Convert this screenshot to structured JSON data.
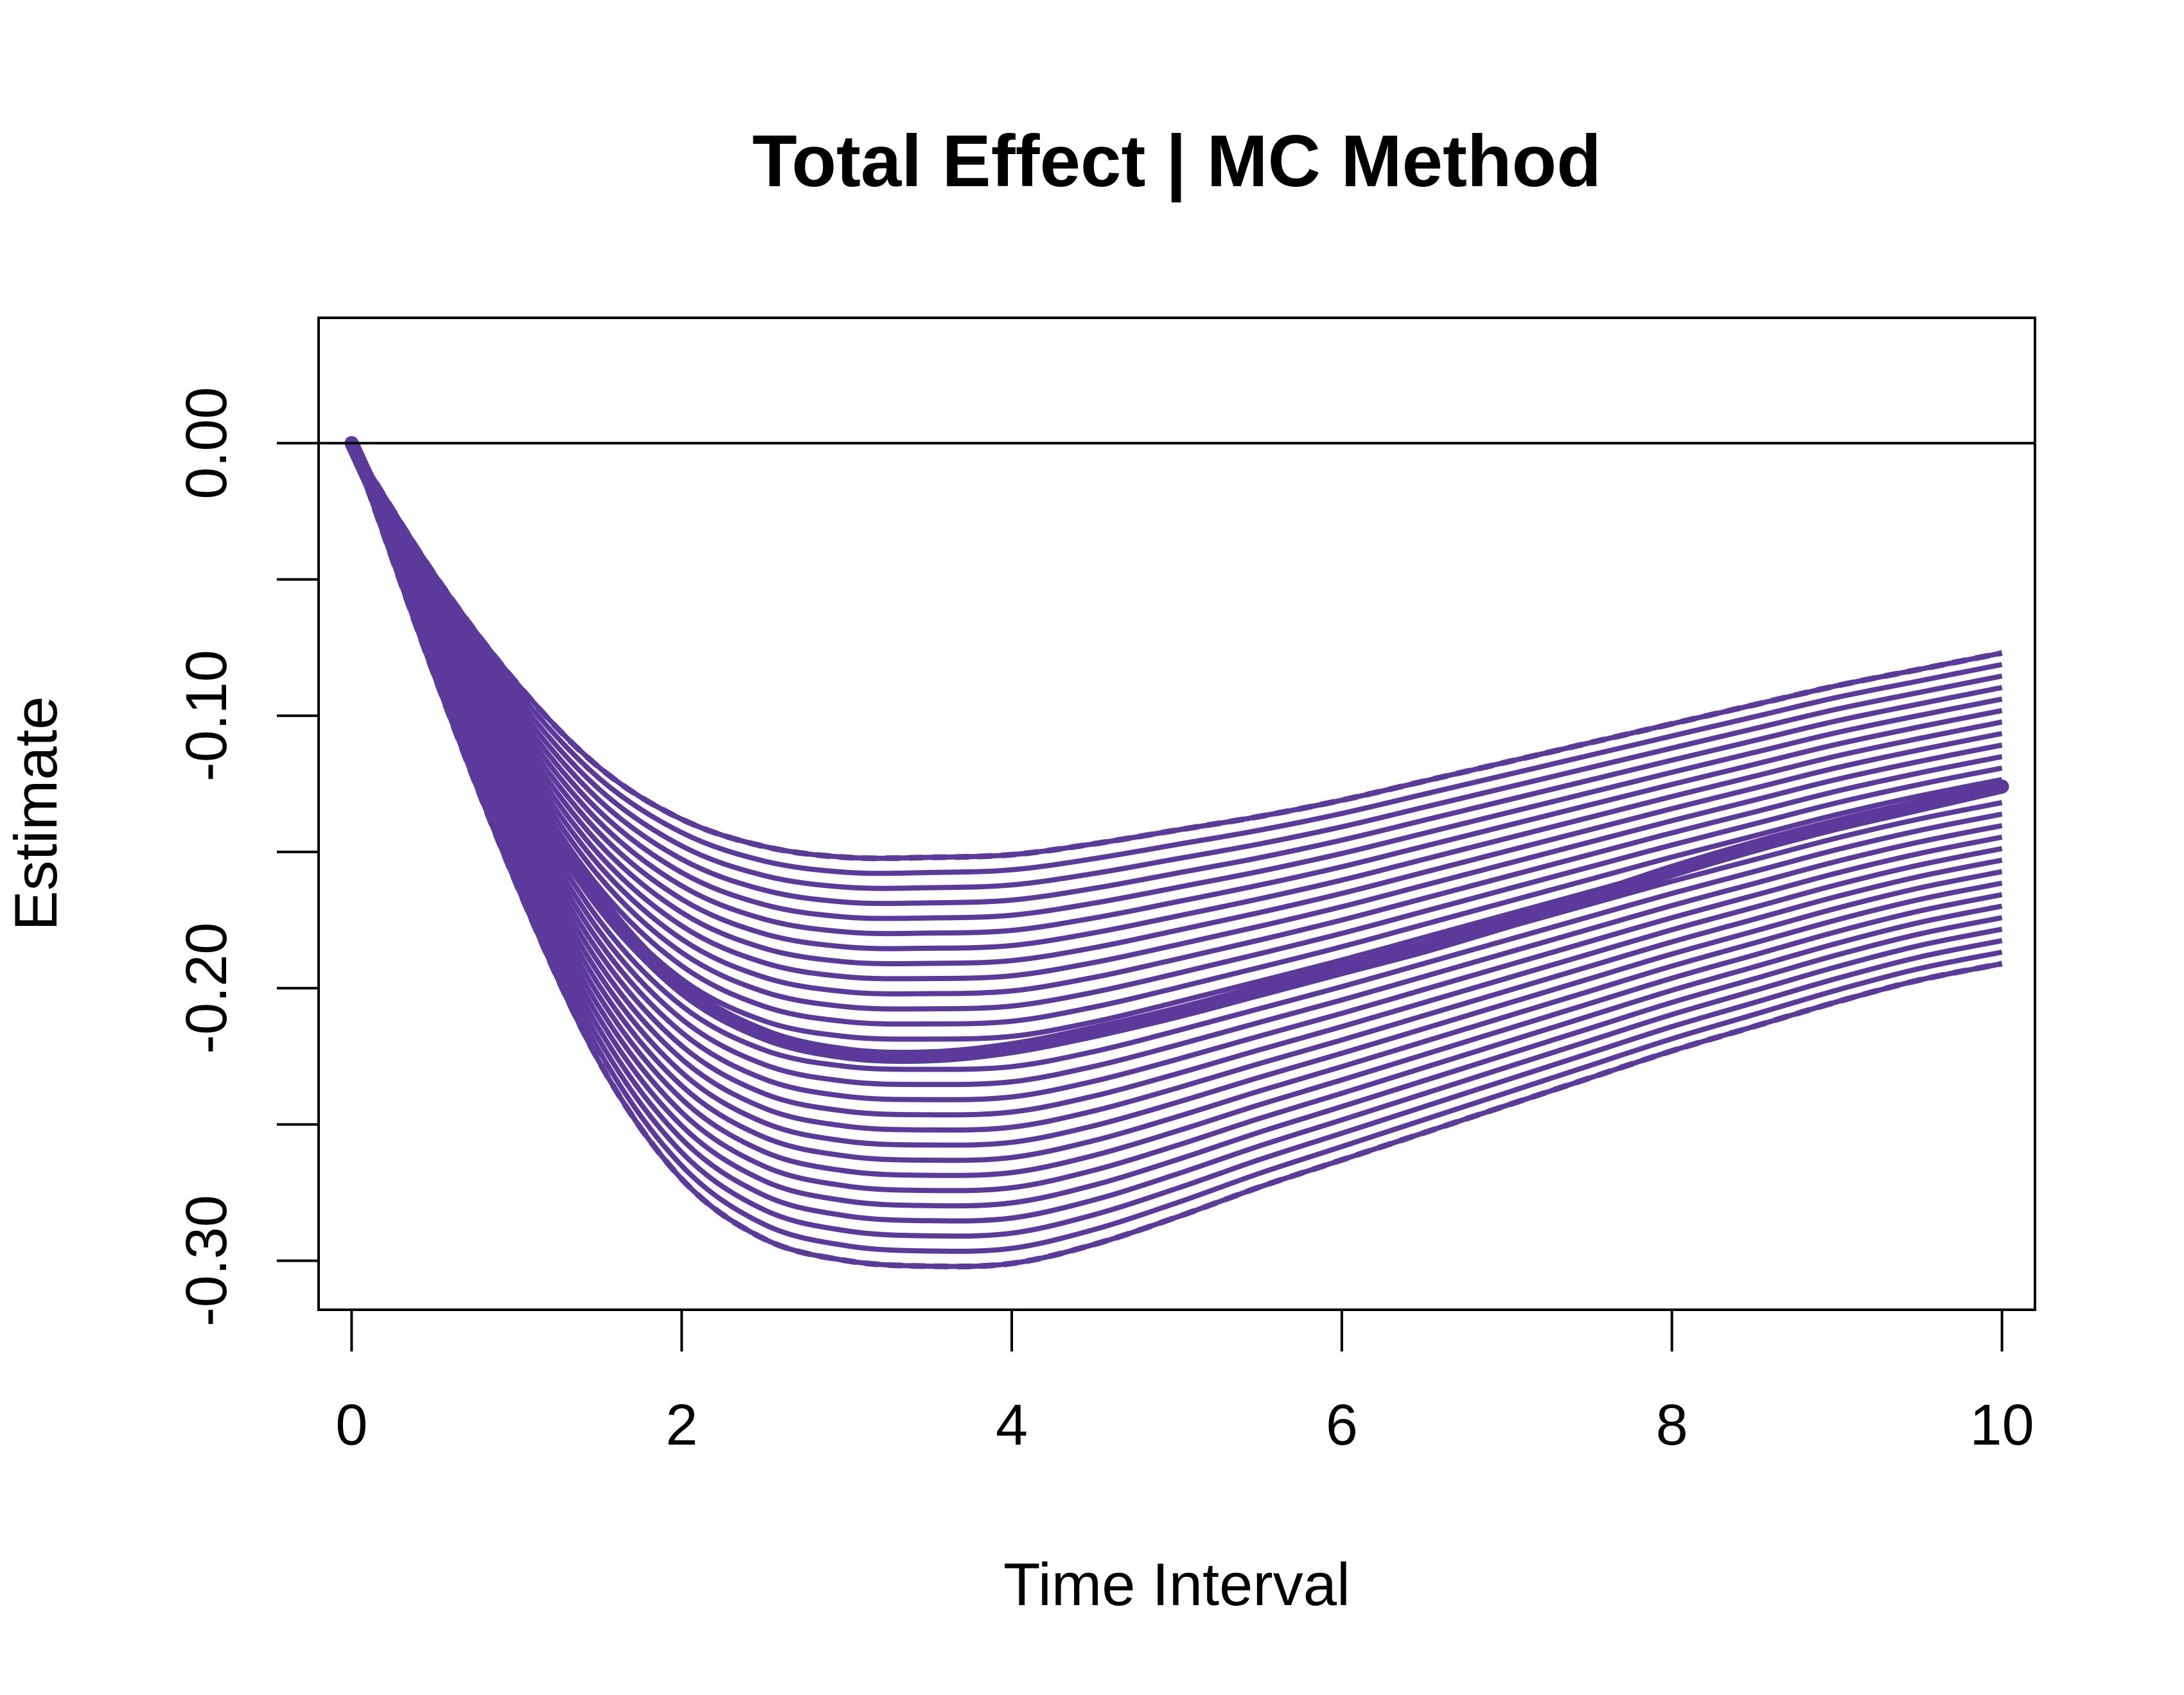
{
  "chart_data": {
    "type": "line",
    "title": "Total Effect | MC Method",
    "xlabel": "Time Interval",
    "ylabel": "Estimate",
    "xlim": [
      -0.2,
      10.2
    ],
    "ylim": [
      -0.318,
      0.046
    ],
    "x_ticks": [
      0,
      2,
      4,
      6,
      8,
      10
    ],
    "x_tick_labels": [
      "0",
      "2",
      "4",
      "6",
      "8",
      "10"
    ],
    "y_ticks": [
      0.0,
      -0.05,
      -0.1,
      -0.15,
      -0.2,
      -0.25,
      -0.3
    ],
    "y_tick_labels": [
      "0.00",
      "",
      "-0.10",
      "",
      "-0.20",
      "",
      "-0.30"
    ],
    "reference_line_y": 0,
    "line_color": "#5B3A9B",
    "grid": false,
    "band_curve_count": 28,
    "series": [
      {
        "role": "estimate",
        "x": [
          0,
          0.5,
          1,
          1.5,
          2,
          2.5,
          3,
          3.5,
          4,
          4.5,
          5,
          5.5,
          6,
          6.5,
          7,
          7.5,
          8,
          8.5,
          9,
          9.5,
          10
        ],
        "values": [
          0,
          -0.065,
          -0.122,
          -0.168,
          -0.2,
          -0.217,
          -0.224,
          -0.225,
          -0.222,
          -0.216,
          -0.209,
          -0.201,
          -0.193,
          -0.185,
          -0.176,
          -0.167,
          -0.157,
          -0.148,
          -0.14,
          -0.133,
          -0.126
        ]
      },
      {
        "role": "upper-bound",
        "x": [
          0,
          0.5,
          1,
          1.5,
          2,
          2.5,
          3,
          3.5,
          4,
          4.5,
          5,
          5.5,
          6,
          6.5,
          7,
          7.5,
          8,
          8.5,
          9,
          9.5,
          10
        ],
        "values": [
          0,
          -0.048,
          -0.088,
          -0.119,
          -0.138,
          -0.148,
          -0.152,
          -0.152,
          -0.151,
          -0.147,
          -0.142,
          -0.137,
          -0.131,
          -0.124,
          -0.117,
          -0.11,
          -0.103,
          -0.096,
          -0.089,
          -0.083,
          -0.077
        ]
      },
      {
        "role": "lower-bound",
        "x": [
          0,
          0.5,
          1,
          1.5,
          2,
          2.5,
          3,
          3.5,
          4,
          4.5,
          5,
          5.5,
          6,
          6.5,
          7,
          7.5,
          8,
          8.5,
          9,
          9.5,
          10
        ],
        "values": [
          0,
          -0.085,
          -0.162,
          -0.227,
          -0.27,
          -0.292,
          -0.3,
          -0.302,
          -0.301,
          -0.294,
          -0.284,
          -0.273,
          -0.263,
          -0.253,
          -0.243,
          -0.233,
          -0.223,
          -0.214,
          -0.205,
          -0.197,
          -0.191
        ]
      }
    ]
  }
}
